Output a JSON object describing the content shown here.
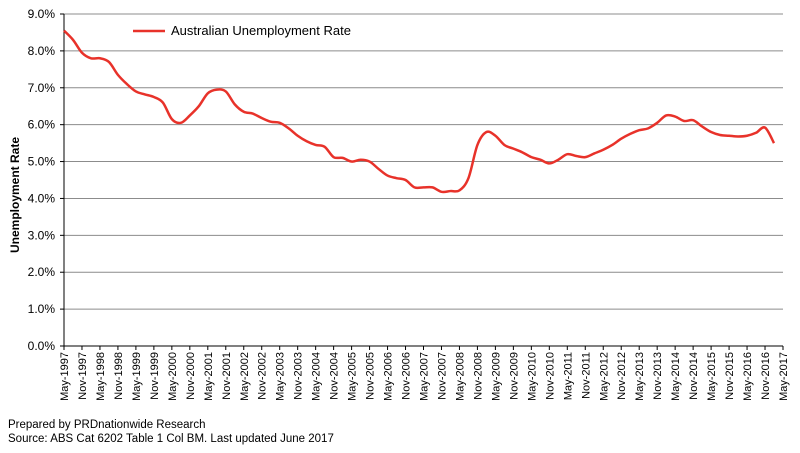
{
  "chart_data": {
    "type": "line",
    "title": "",
    "ylabel": "Unemployment Rate",
    "xlabel": "",
    "ylim": [
      0,
      9
    ],
    "y_ticks": [
      "0.0%",
      "1.0%",
      "2.0%",
      "3.0%",
      "4.0%",
      "5.0%",
      "6.0%",
      "7.0%",
      "8.0%",
      "9.0%"
    ],
    "grid": true,
    "legend_position": "top-left",
    "series_color": "#e8322a",
    "x_categories": [
      "May-1997",
      "Nov-1997",
      "May-1998",
      "Nov-1998",
      "May-1999",
      "Nov-1999",
      "May-2000",
      "Nov-2000",
      "May-2001",
      "Nov-2001",
      "May-2002",
      "Nov-2002",
      "May-2003",
      "Nov-2003",
      "May-2004",
      "Nov-2004",
      "May-2005",
      "Nov-2005",
      "May-2006",
      "Nov-2006",
      "May-2007",
      "Nov-2007",
      "May-2008",
      "Nov-2008",
      "May-2009",
      "Nov-2009",
      "May-2010",
      "Nov-2010",
      "May-2011",
      "Nov-2011",
      "May-2012",
      "Nov-2012",
      "May-2013",
      "Nov-2013",
      "May-2014",
      "Nov-2014",
      "May-2015",
      "Nov-2015",
      "May-2016",
      "Nov-2016",
      "May-2017"
    ],
    "series": [
      {
        "name": "Australian Unemployment Rate",
        "points": [
          [
            0,
            8.55
          ],
          [
            0.5,
            8.3
          ],
          [
            1,
            7.95
          ],
          [
            1.5,
            7.8
          ],
          [
            2,
            7.8
          ],
          [
            2.5,
            7.7
          ],
          [
            3,
            7.35
          ],
          [
            3.5,
            7.1
          ],
          [
            4,
            6.9
          ],
          [
            4.5,
            6.82
          ],
          [
            5,
            6.75
          ],
          [
            5.5,
            6.6
          ],
          [
            6,
            6.15
          ],
          [
            6.5,
            6.05
          ],
          [
            7,
            6.25
          ],
          [
            7.5,
            6.5
          ],
          [
            8,
            6.85
          ],
          [
            8.5,
            6.95
          ],
          [
            9,
            6.9
          ],
          [
            9.5,
            6.55
          ],
          [
            10,
            6.35
          ],
          [
            10.5,
            6.3
          ],
          [
            11,
            6.18
          ],
          [
            11.5,
            6.08
          ],
          [
            12,
            6.05
          ],
          [
            12.5,
            5.9
          ],
          [
            13,
            5.7
          ],
          [
            13.5,
            5.55
          ],
          [
            14,
            5.45
          ],
          [
            14.5,
            5.4
          ],
          [
            15,
            5.12
          ],
          [
            15.5,
            5.1
          ],
          [
            16,
            5.0
          ],
          [
            16.5,
            5.05
          ],
          [
            17,
            5.0
          ],
          [
            17.5,
            4.8
          ],
          [
            18,
            4.62
          ],
          [
            18.5,
            4.55
          ],
          [
            19,
            4.5
          ],
          [
            19.5,
            4.3
          ],
          [
            20,
            4.3
          ],
          [
            20.5,
            4.3
          ],
          [
            21,
            4.18
          ],
          [
            21.5,
            4.2
          ],
          [
            22,
            4.22
          ],
          [
            22.5,
            4.55
          ],
          [
            23,
            5.45
          ],
          [
            23.5,
            5.8
          ],
          [
            24,
            5.7
          ],
          [
            24.5,
            5.45
          ],
          [
            25,
            5.35
          ],
          [
            25.5,
            5.25
          ],
          [
            26,
            5.12
          ],
          [
            26.5,
            5.05
          ],
          [
            27,
            4.95
          ],
          [
            27.5,
            5.05
          ],
          [
            28,
            5.2
          ],
          [
            28.5,
            5.15
          ],
          [
            29,
            5.12
          ],
          [
            29.5,
            5.22
          ],
          [
            30,
            5.32
          ],
          [
            30.5,
            5.45
          ],
          [
            31,
            5.62
          ],
          [
            31.5,
            5.75
          ],
          [
            32,
            5.85
          ],
          [
            32.5,
            5.9
          ],
          [
            33,
            6.05
          ],
          [
            33.5,
            6.25
          ],
          [
            34,
            6.22
          ],
          [
            34.5,
            6.1
          ],
          [
            35,
            6.12
          ],
          [
            35.5,
            5.95
          ],
          [
            36,
            5.8
          ],
          [
            36.5,
            5.72
          ],
          [
            37,
            5.7
          ],
          [
            37.5,
            5.68
          ],
          [
            38,
            5.7
          ],
          [
            38.5,
            5.78
          ],
          [
            39,
            5.92
          ],
          [
            39.5,
            5.5
          ]
        ]
      }
    ]
  },
  "footer": {
    "line1": "Prepared by PRDnationwide Research",
    "line2": "Source: ABS Cat 6202 Table 1 Col BM. Last updated June 2017"
  }
}
